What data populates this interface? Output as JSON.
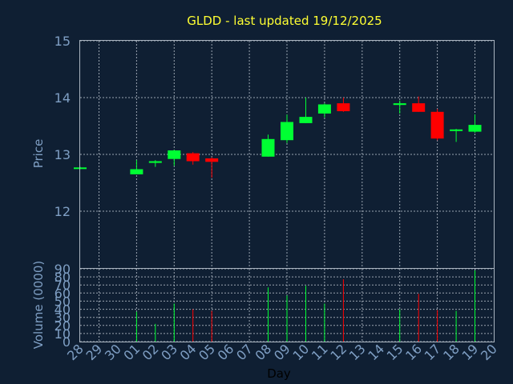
{
  "chart_data": {
    "type": "candlestick",
    "title": "GLDD - last updated 19/12/2025",
    "xlabel": "Day",
    "price_panel": {
      "ylabel": "Price",
      "ylim": [
        11,
        15
      ],
      "yticks": [
        "12",
        "13",
        "14",
        "15"
      ]
    },
    "volume_panel": {
      "ylabel": "Volume (0000)",
      "ylim": [
        0,
        90
      ],
      "yticks": [
        "0",
        "10",
        "20",
        "30",
        "40",
        "50",
        "60",
        "70",
        "80",
        "90"
      ]
    },
    "categories": [
      "28",
      "29",
      "30",
      "01",
      "02",
      "03",
      "04",
      "05",
      "06",
      "07",
      "08",
      "09",
      "10",
      "11",
      "12",
      "13",
      "14",
      "15",
      "16",
      "17",
      "18",
      "19",
      "20"
    ],
    "candles": [
      {
        "day": "28",
        "open": 12.75,
        "high": 12.78,
        "low": 12.74,
        "close": 12.77
      },
      {
        "day": "01",
        "open": 12.65,
        "high": 12.9,
        "low": 12.65,
        "close": 12.74
      },
      {
        "day": "02",
        "open": 12.85,
        "high": 12.9,
        "low": 12.78,
        "close": 12.88
      },
      {
        "day": "03",
        "open": 12.92,
        "high": 13.08,
        "low": 12.8,
        "close": 13.07
      },
      {
        "day": "04",
        "open": 13.02,
        "high": 13.04,
        "low": 12.82,
        "close": 12.88
      },
      {
        "day": "05",
        "open": 12.93,
        "high": 12.95,
        "low": 12.59,
        "close": 12.87
      },
      {
        "day": "08",
        "open": 12.96,
        "high": 13.35,
        "low": 12.96,
        "close": 13.27
      },
      {
        "day": "09",
        "open": 13.25,
        "high": 13.7,
        "low": 13.2,
        "close": 13.57
      },
      {
        "day": "10",
        "open": 13.55,
        "high": 14.0,
        "low": 13.55,
        "close": 13.66
      },
      {
        "day": "11",
        "open": 13.72,
        "high": 13.9,
        "low": 13.65,
        "close": 13.88
      },
      {
        "day": "12",
        "open": 13.9,
        "high": 14.0,
        "low": 13.75,
        "close": 13.76
      },
      {
        "day": "15",
        "open": 13.87,
        "high": 13.95,
        "low": 13.72,
        "close": 13.9
      },
      {
        "day": "16",
        "open": 13.9,
        "high": 14.02,
        "low": 13.75,
        "close": 13.75
      },
      {
        "day": "17",
        "open": 13.75,
        "high": 13.8,
        "low": 13.25,
        "close": 13.28
      },
      {
        "day": "18",
        "open": 13.42,
        "high": 13.45,
        "low": 13.22,
        "close": 13.44
      },
      {
        "day": "19",
        "open": 13.4,
        "high": 13.7,
        "low": 13.38,
        "close": 13.52
      }
    ],
    "volume": [
      {
        "day": "01",
        "value": 37,
        "direction": "up"
      },
      {
        "day": "02",
        "value": 22,
        "direction": "up"
      },
      {
        "day": "03",
        "value": 47,
        "direction": "up"
      },
      {
        "day": "04",
        "value": 40,
        "direction": "down"
      },
      {
        "day": "05",
        "value": 38,
        "direction": "down"
      },
      {
        "day": "08",
        "value": 67,
        "direction": "up"
      },
      {
        "day": "09",
        "value": 57,
        "direction": "up"
      },
      {
        "day": "10",
        "value": 69,
        "direction": "up"
      },
      {
        "day": "11",
        "value": 47,
        "direction": "up"
      },
      {
        "day": "12",
        "value": 77,
        "direction": "down"
      },
      {
        "day": "15",
        "value": 40,
        "direction": "up"
      },
      {
        "day": "16",
        "value": 59,
        "direction": "down"
      },
      {
        "day": "17",
        "value": 39,
        "direction": "down"
      },
      {
        "day": "18",
        "value": 38,
        "direction": "up"
      },
      {
        "day": "19",
        "value": 88,
        "direction": "up"
      }
    ],
    "grid": true,
    "colors": {
      "background": "#0f1f33",
      "plot_border": "#aab4c0",
      "grid": "#9aa4b0",
      "title": "#ffff33",
      "axis_text": "#7f9fc4",
      "up": "#00ff33",
      "down": "#ff0000",
      "day_label": "#000000"
    }
  }
}
